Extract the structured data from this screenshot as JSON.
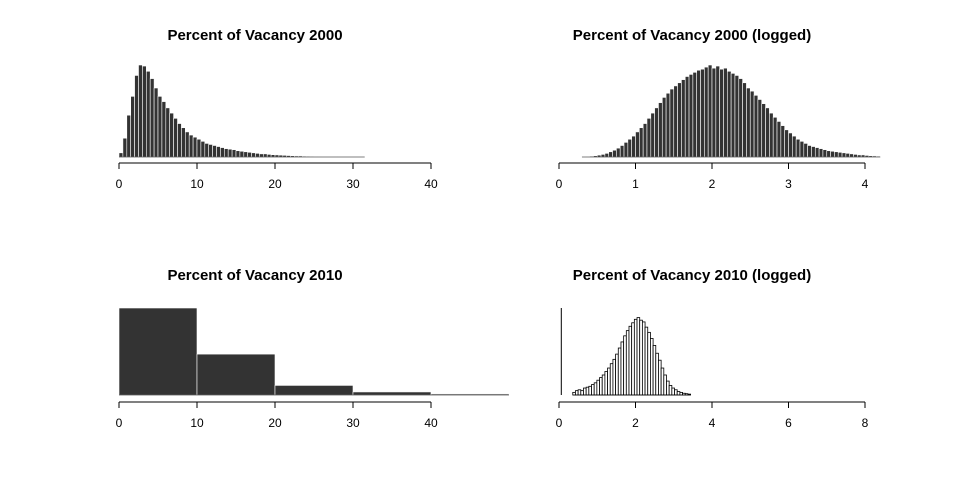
{
  "chart_data": [
    {
      "type": "bar",
      "title": "Percent of Vacancy 2000",
      "xlabel": "",
      "ylabel": "",
      "xlim": [
        0,
        40
      ],
      "x_ticks": [
        0,
        10,
        20,
        30,
        40
      ],
      "x_tick_labels": [
        "0",
        "10",
        "20",
        "30",
        "40"
      ],
      "bin_start": 0,
      "bin_width": 0.5,
      "values": [
        4,
        18,
        40,
        58,
        78,
        88,
        87,
        82,
        75,
        66,
        58,
        53,
        47,
        42,
        37,
        32,
        28,
        24,
        21,
        19,
        17,
        15,
        13,
        12,
        11,
        10,
        9,
        8,
        7.5,
        7,
        6,
        5.5,
        5,
        4.5,
        4,
        3.5,
        3,
        3,
        2.5,
        2.2,
        2,
        1.8,
        1.6,
        1.4,
        1.2,
        1,
        1,
        0.8,
        0.7,
        0.6,
        0.5,
        0.5,
        0.4,
        0.3,
        0.3,
        0,
        0.3,
        0,
        0,
        0,
        0,
        0,
        0.2
      ],
      "bar_color": "#333333",
      "grid": false
    },
    {
      "type": "bar",
      "title": "Percent of Vacancy 2000 (logged)",
      "xlabel": "",
      "ylabel": "",
      "xlim": [
        0,
        4
      ],
      "x_ticks": [
        0,
        1,
        2,
        3,
        4
      ],
      "x_tick_labels": [
        "0",
        "1",
        "2",
        "3",
        "4"
      ],
      "bin_start": 0.3,
      "bin_width": 0.05,
      "values": [
        0.3,
        0.5,
        0.8,
        1.2,
        1.8,
        2.5,
        3.5,
        5,
        6.5,
        8.5,
        11,
        14,
        17,
        20,
        24,
        28,
        32,
        37,
        42,
        47,
        52,
        57,
        61,
        65,
        68,
        71,
        74,
        77,
        79,
        81,
        83,
        84,
        86,
        88,
        85,
        87,
        84,
        85,
        82,
        80,
        78,
        75,
        71,
        66,
        63,
        59,
        55,
        51,
        47,
        42,
        38,
        34,
        30,
        26,
        23,
        20,
        17,
        15,
        13,
        11,
        10,
        9,
        8,
        7,
        6,
        5.5,
        5,
        4.5,
        4,
        3.5,
        3,
        2.5,
        2,
        2,
        1.5,
        1.2,
        1,
        0.8
      ],
      "bar_color": "#333333",
      "grid": false
    },
    {
      "type": "bar",
      "title": "Percent of Vacancy 2010",
      "xlabel": "",
      "ylabel": "",
      "xlim": [
        0,
        40
      ],
      "x_ticks": [
        0,
        10,
        20,
        30,
        40
      ],
      "x_tick_labels": [
        "0",
        "10",
        "20",
        "30",
        "40"
      ],
      "bin_start": 0,
      "bin_width": 10,
      "values": [
        100,
        47,
        11,
        3.5,
        1.2
      ],
      "bar_color": "#333333",
      "grid": false
    },
    {
      "type": "bar",
      "title": "Percent of Vacancy 2010 (logged)",
      "xlabel": "",
      "ylabel": "",
      "xlim": [
        0,
        8
      ],
      "x_ticks": [
        0,
        2,
        4,
        6,
        8
      ],
      "x_tick_labels": [
        "0",
        "2",
        "4",
        "6",
        "8"
      ],
      "bin_start": 0.36,
      "bin_width": 0.07,
      "values": [
        3,
        5,
        6,
        5,
        8,
        9,
        10,
        12,
        14,
        17,
        20,
        23,
        27,
        31,
        36,
        41,
        47,
        54,
        61,
        68,
        74,
        79,
        83,
        87,
        89,
        86,
        84,
        78,
        72,
        65,
        57,
        48,
        40,
        31,
        23,
        16,
        11,
        8,
        6,
        4,
        3,
        2,
        1.5,
        1
      ],
      "spike_x": 0.06,
      "spike_value": 100,
      "bar_color": "#ffffff",
      "bar_outline": "#000000",
      "grid": false
    }
  ]
}
